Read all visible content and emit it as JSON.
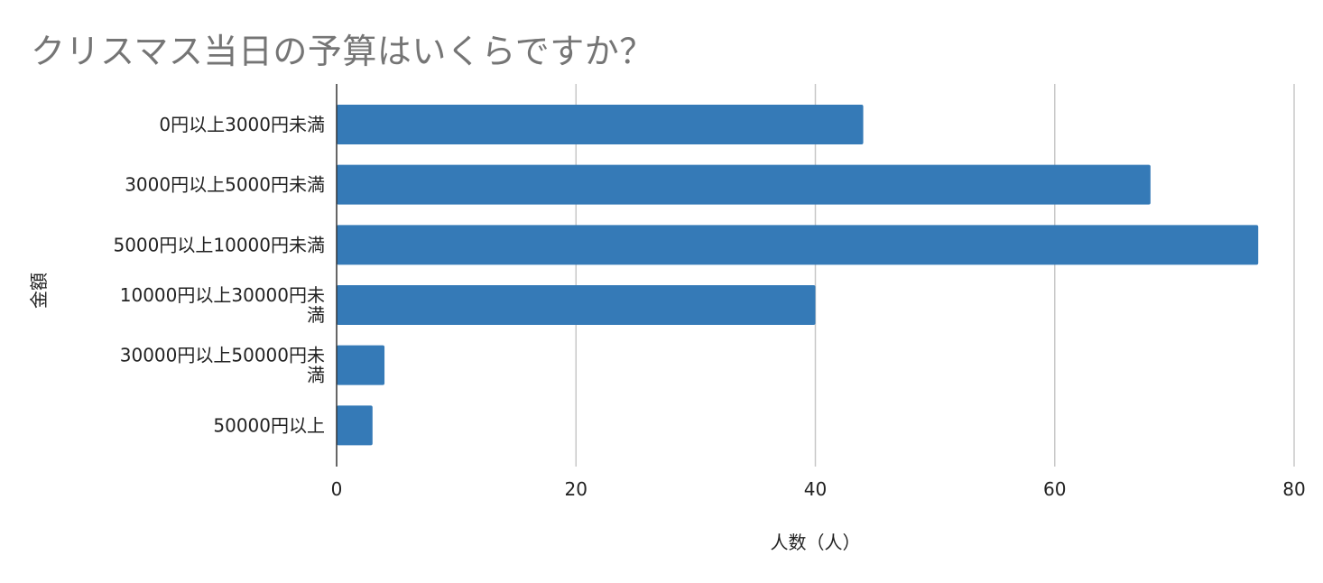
{
  "chart_data": {
    "type": "bar",
    "orientation": "horizontal",
    "title": "クリスマス当日の予算はいくらですか？",
    "xlabel": "人数（人）",
    "ylabel": "金額",
    "categories": [
      [
        "0円以上3000円未満"
      ],
      [
        "3000円以上5000円未満"
      ],
      [
        "5000円以上10000円未満"
      ],
      [
        "10000円以上30000円未",
        "満"
      ],
      [
        "30000円以上50000円未",
        "満"
      ],
      [
        "50000円以上"
      ]
    ],
    "values": [
      44,
      68,
      77,
      40,
      4,
      3
    ],
    "xlim": [
      0,
      80
    ],
    "xticks": [
      "0",
      "20",
      "40",
      "60",
      "80"
    ],
    "grid": true,
    "legend": "none",
    "colors": {
      "bar": "#357ab7",
      "grid": "#c8c8c8",
      "axis": "#333333"
    }
  }
}
